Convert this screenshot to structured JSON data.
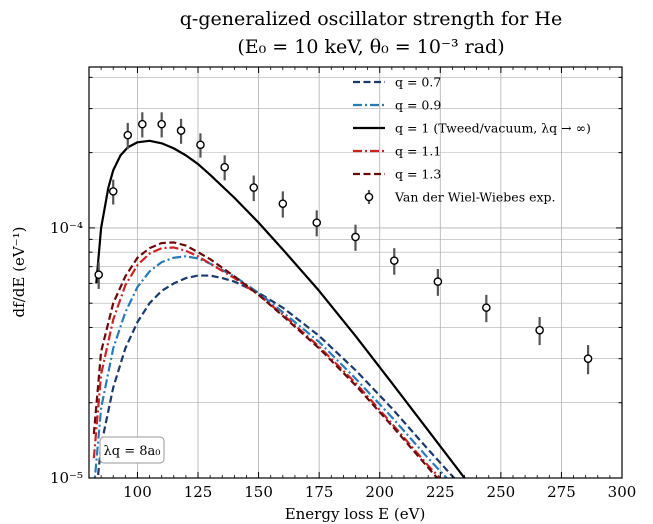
{
  "chart_data": {
    "type": "line",
    "title_line1": "q-generalized oscillator strength for He",
    "title_line2": "(E₀ = 10 keV, θ₀ = 10⁻³ rad)",
    "xlabel": "Energy loss E (eV)",
    "ylabel": "df/dE (eV⁻¹)",
    "xlim": [
      80,
      300
    ],
    "ylim": [
      1e-05,
      0.00044
    ],
    "y_scale": "log",
    "x_ticks": [
      100,
      125,
      150,
      175,
      200,
      225,
      250,
      275,
      300
    ],
    "x_tick_labels": [
      "100",
      "125",
      "150",
      "175",
      "200",
      "225",
      "250",
      "275",
      "300"
    ],
    "y_major_ticks": [
      1e-05,
      0.0001
    ],
    "y_tick_labels": [
      "10⁻⁵",
      "10⁻⁴"
    ],
    "grid": true,
    "legend_position": "top-right",
    "annotation": "λq = 8a₀",
    "series": [
      {
        "name": "q = 0.7",
        "color": "#1b3a6b",
        "style": "dashed",
        "x": [
          82,
          85,
          90,
          95,
          100,
          105,
          110,
          115,
          120,
          125,
          130,
          135,
          140,
          150,
          160,
          175,
          190,
          205,
          220,
          235
        ],
        "y": [
          7e-06,
          1.35e-05,
          2.3e-05,
          3.3e-05,
          4.2e-05,
          5e-05,
          5.6e-05,
          6e-05,
          6.3e-05,
          6.45e-05,
          6.45e-05,
          6.3e-05,
          6.1e-05,
          5.5e-05,
          4.8e-05,
          3.7e-05,
          2.7e-05,
          1.9e-05,
          1.3e-05,
          9e-06
        ]
      },
      {
        "name": "q = 0.9",
        "color": "#2a7ab8",
        "style": "dashdot",
        "x": [
          82,
          85,
          90,
          95,
          100,
          105,
          110,
          115,
          120,
          125,
          130,
          140,
          150,
          160,
          175,
          190,
          205,
          220,
          232
        ],
        "y": [
          9e-06,
          1.9e-05,
          3.3e-05,
          4.6e-05,
          5.8e-05,
          6.7e-05,
          7.3e-05,
          7.6e-05,
          7.7e-05,
          7.55e-05,
          7.2e-05,
          6.4e-05,
          5.5e-05,
          4.6e-05,
          3.5e-05,
          2.5e-05,
          1.75e-05,
          1.2e-05,
          9e-06
        ]
      },
      {
        "name": "q = 1 (Tweed/vacuum, λq → ∞)",
        "color": "#000000",
        "style": "solid",
        "x": [
          83,
          85,
          88,
          90,
          93,
          96,
          100,
          105,
          110,
          115,
          120,
          125,
          130,
          140,
          150,
          160,
          175,
          190,
          205,
          220,
          235,
          245
        ],
        "y": [
          6e-05,
          0.0001,
          0.000145,
          0.00017,
          0.000195,
          0.00021,
          0.00022,
          0.000223,
          0.000218,
          0.000208,
          0.000195,
          0.00018,
          0.000163,
          0.000132,
          0.000105,
          8.2e-05,
          5.6e-05,
          3.7e-05,
          2.4e-05,
          1.55e-05,
          1e-05,
          7.5e-06
        ]
      },
      {
        "name": "q = 1.1",
        "color": "#cc2222",
        "style": "dashdot",
        "x": [
          82,
          85,
          90,
          95,
          100,
          105,
          110,
          115,
          120,
          125,
          130,
          140,
          150,
          160,
          175,
          190,
          205,
          220,
          232
        ],
        "y": [
          1.2e-05,
          2.6e-05,
          4.3e-05,
          5.9e-05,
          7.1e-05,
          7.9e-05,
          8.3e-05,
          8.35e-05,
          8.1e-05,
          7.7e-05,
          7.2e-05,
          6.3e-05,
          5.4e-05,
          4.5e-05,
          3.35e-05,
          2.4e-05,
          1.65e-05,
          1.12e-05,
          8.5e-06
        ]
      },
      {
        "name": "q = 1.3",
        "color": "#6b0a0a",
        "style": "dashed",
        "x": [
          82,
          85,
          90,
          95,
          100,
          105,
          110,
          115,
          120,
          125,
          130,
          140,
          150,
          160,
          175,
          190,
          205,
          220,
          230
        ],
        "y": [
          1.5e-05,
          3.2e-05,
          5e-05,
          6.4e-05,
          7.6e-05,
          8.3e-05,
          8.7e-05,
          8.75e-05,
          8.5e-05,
          8e-05,
          7.5e-05,
          6.4e-05,
          5.4e-05,
          4.45e-05,
          3.3e-05,
          2.35e-05,
          1.62e-05,
          1.1e-05,
          8.5e-06
        ]
      }
    ],
    "experiment": {
      "name": "Van der Wiel-Wiebes exp.",
      "color": "#000000",
      "x": [
        84,
        90,
        96,
        102,
        110,
        118,
        126,
        136,
        148,
        160,
        174,
        190,
        206,
        224,
        244,
        266,
        286
      ],
      "y": [
        6.5e-05,
        0.00014,
        0.000235,
        0.00026,
        0.00026,
        0.000245,
        0.000215,
        0.000175,
        0.000145,
        0.000125,
        0.000105,
        9.2e-05,
        7.4e-05,
        6.1e-05,
        4.8e-05,
        3.9e-05,
        3e-05
      ],
      "err": [
        8e-06,
        1.6e-05,
        2.8e-05,
        3e-05,
        3e-05,
        2.8e-05,
        2.4e-05,
        2e-05,
        1.7e-05,
        1.5e-05,
        1.25e-05,
        1.1e-05,
        9e-06,
        7.5e-06,
        6e-06,
        5e-06,
        4e-06
      ]
    }
  }
}
